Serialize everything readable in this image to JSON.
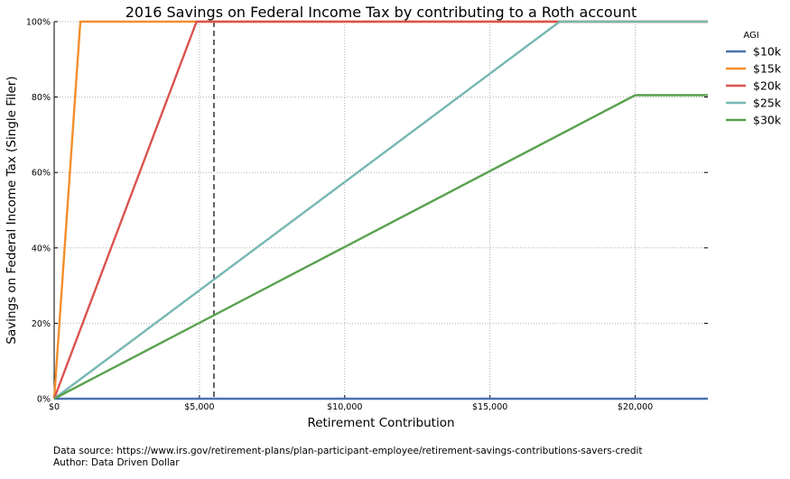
{
  "chart_data": {
    "type": "line",
    "title": "2016 Savings on Federal Income Tax by contributing to a Roth account",
    "xlabel": "Retirement Contribution",
    "ylabel": "Savings on Federal Income Tax (Single Filer)",
    "xlim": [
      0,
      22500
    ],
    "ylim": [
      0,
      1
    ],
    "x_ticks": [
      {
        "value": 0,
        "label": "$0"
      },
      {
        "value": 5000,
        "label": "$5,000"
      },
      {
        "value": 10000,
        "label": "$10,000"
      },
      {
        "value": 15000,
        "label": "$15,000"
      },
      {
        "value": 20000,
        "label": "$20,000"
      }
    ],
    "y_ticks": [
      {
        "value": 0,
        "label": "0%"
      },
      {
        "value": 0.2,
        "label": "20%"
      },
      {
        "value": 0.4,
        "label": "40%"
      },
      {
        "value": 0.6,
        "label": "60%"
      },
      {
        "value": 0.8,
        "label": "80%"
      },
      {
        "value": 1.0,
        "label": "100%"
      }
    ],
    "grid": true,
    "legend": {
      "title": "AGI",
      "placement": "outside-right"
    },
    "reference_line": {
      "x": 5500,
      "style": "dashed",
      "color": "#000000"
    },
    "series": [
      {
        "name": "$10k",
        "color": "#4c72b0",
        "x": [
          0,
          22500
        ],
        "y": [
          0,
          0
        ]
      },
      {
        "name": "$15k",
        "color": "#f28e2b",
        "x": [
          0,
          900,
          22500
        ],
        "y": [
          0,
          1.0,
          1.0
        ]
      },
      {
        "name": "$20k",
        "color": "#d9534f",
        "x": [
          0,
          4900,
          22500
        ],
        "y": [
          0,
          1.0,
          1.0
        ]
      },
      {
        "name": "$25k",
        "color": "#76b7b2",
        "x": [
          0,
          17400,
          22500
        ],
        "y": [
          0,
          1.0,
          1.0
        ]
      },
      {
        "name": "$30k",
        "color": "#59a14f",
        "x": [
          0,
          20000,
          22500
        ],
        "y": [
          0,
          0.805,
          0.805
        ]
      }
    ]
  },
  "footer": {
    "source": "Data source: https://www.irs.gov/retirement-plans/plan-participant-employee/retirement-savings-contributions-savers-credit",
    "author": "Author: Data Driven Dollar"
  }
}
